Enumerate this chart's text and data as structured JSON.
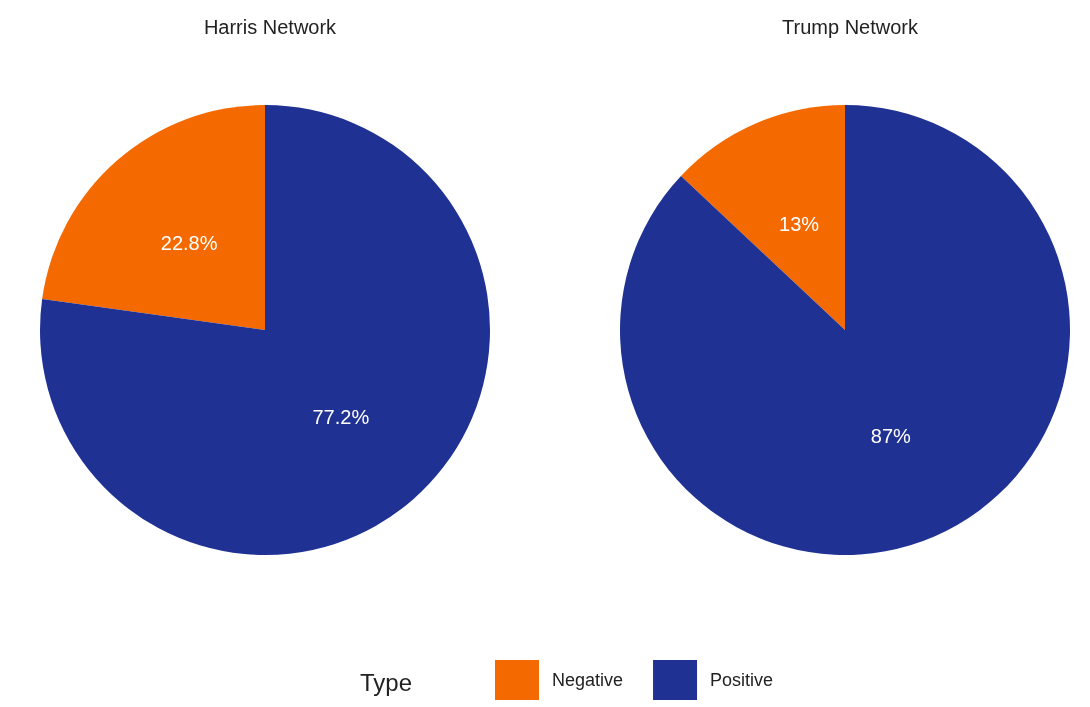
{
  "chart_data": [
    {
      "type": "pie",
      "title": "Harris Network",
      "categories": [
        "Negative",
        "Positive"
      ],
      "values": [
        22.8,
        77.2
      ],
      "colors": [
        "#f46a00",
        "#1f3193"
      ],
      "value_labels": [
        "22.8%",
        "77.2%"
      ],
      "legend": "bottom",
      "legend_title": "Type"
    },
    {
      "type": "pie",
      "title": "Trump Network",
      "categories": [
        null,
        null
      ],
      "values": [
        13,
        87
      ],
      "colors": [
        "#f46a00",
        "#1f3193"
      ],
      "value_labels": [
        "13%",
        "87%"
      ]
    }
  ]
}
